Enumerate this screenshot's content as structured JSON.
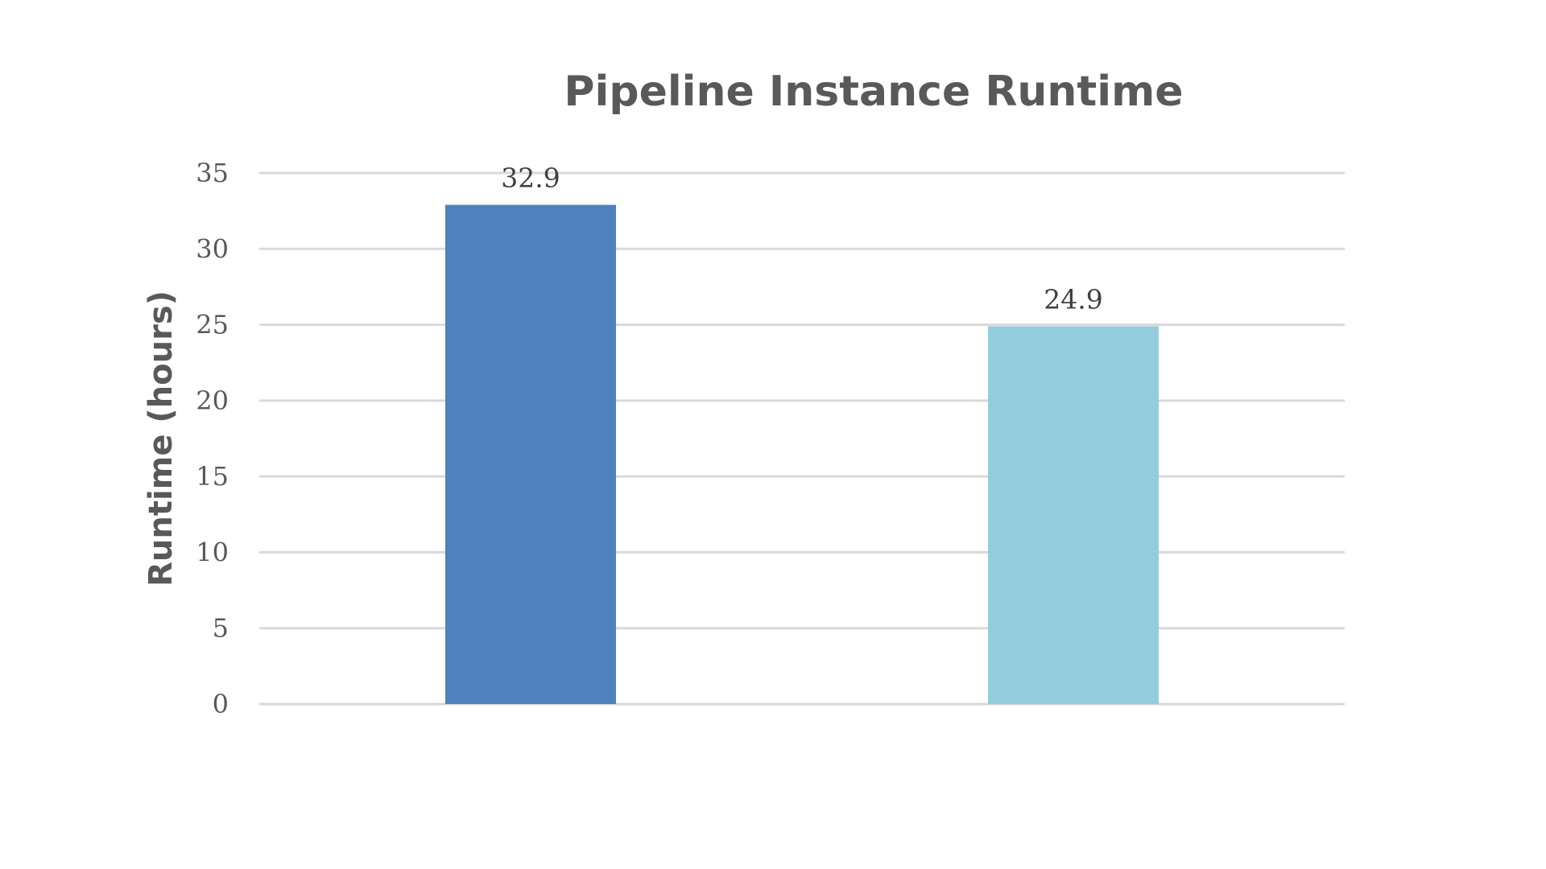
{
  "chart_data": {
    "type": "bar",
    "title": "Pipeline Instance Runtime",
    "xlabel": "",
    "ylabel": "Runtime (hours)",
    "ylim": [
      0,
      35
    ],
    "yticks": [
      0,
      5,
      10,
      15,
      20,
      25,
      30,
      35
    ],
    "grid": true,
    "legend": "none",
    "categories": [
      "",
      ""
    ],
    "values": [
      32.9,
      24.9
    ],
    "data_labels": [
      "32.9",
      "24.9"
    ],
    "colors": [
      "#4f81bd",
      "#93cddd"
    ]
  }
}
